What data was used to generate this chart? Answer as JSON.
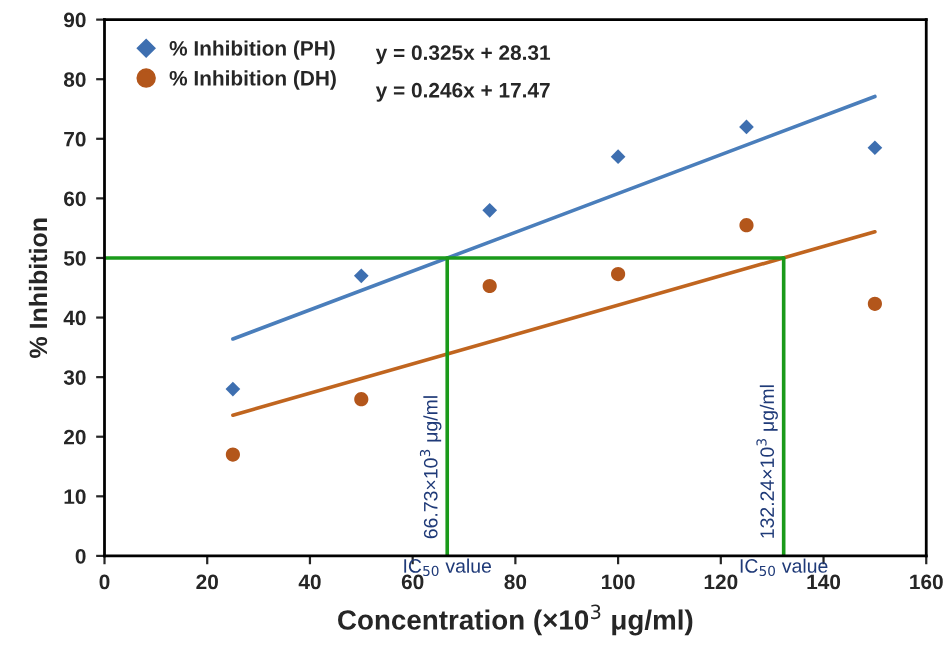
{
  "chart_data": {
    "type": "scatter",
    "xlabel": "Concentration (×10$^{3}$ μg/ml)",
    "ylabel": "% Inhibition",
    "x": [
      25,
      50,
      75,
      100,
      125,
      150
    ],
    "series": [
      {
        "name": "% Inhibition (PH)",
        "color": "#3e6fb0",
        "marker": "diamond",
        "values": [
          28,
          47,
          58,
          67,
          72,
          68.5
        ]
      },
      {
        "name": "% Inhibition (DH)",
        "color": "#b3561b",
        "marker": "circle",
        "values": [
          17,
          26.3,
          45.3,
          47.3,
          55.5,
          42.3
        ]
      },
      {
        "type": "line",
        "color": "#4a7ebb",
        "x": [
          25,
          150
        ],
        "values": [
          36.4,
          77.1
        ]
      },
      {
        "type": "line",
        "color": "#c0651f",
        "x": [
          25,
          150
        ],
        "values": [
          23.6,
          54.4
        ]
      },
      {
        "type": "line",
        "color": "#1a9a1a",
        "x": [
          0,
          132.24
        ],
        "values": [
          50,
          50
        ]
      },
      {
        "type": "line",
        "color": "#1a9a1a",
        "x": [
          66.73,
          66.73
        ],
        "values": [
          0,
          50
        ]
      },
      {
        "type": "line",
        "color": "#1a9a1a",
        "x": [
          132.24,
          132.24
        ],
        "values": [
          0,
          50
        ]
      }
    ],
    "annotations": [
      "y = 0.325x + 28.31",
      "y = 0.246x + 17.47",
      "66.73×10$^{3}$ μg/ml",
      "IC$_{50}$ value",
      "132.24×10$^{3}$ μg/ml",
      "IC$_{50}$ value"
    ],
    "xlim": [
      0,
      160
    ],
    "xticks": [
      0,
      20,
      40,
      60,
      80,
      100,
      120,
      140,
      160
    ],
    "ylim": [
      0,
      90
    ],
    "yticks": [
      0,
      10,
      20,
      30,
      40,
      50,
      60,
      70,
      80,
      90
    ],
    "legend": "top left",
    "grid": false
  }
}
